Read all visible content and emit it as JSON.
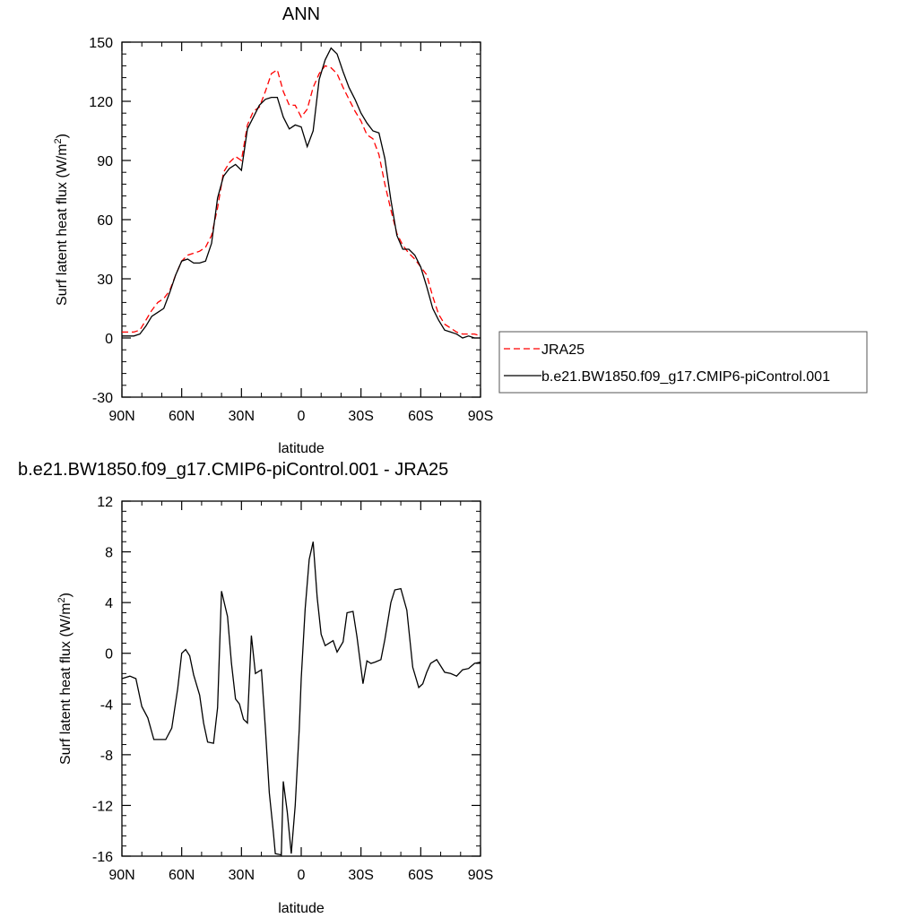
{
  "chart_data": [
    {
      "type": "line",
      "title": "ANN",
      "xlabel": "latitude",
      "ylabel_main": "Surf latent heat flux (W/m",
      "ylabel_sup": "2",
      "ylabel_end": ")",
      "xlim": [
        90,
        -90
      ],
      "ylim": [
        -30,
        150
      ],
      "x_ticks": [
        90,
        60,
        30,
        0,
        -30,
        -60,
        -90
      ],
      "x_tick_labels": [
        "90N",
        "60N",
        "30N",
        "0",
        "30S",
        "60S",
        "90S"
      ],
      "y_ticks": [
        -30,
        0,
        30,
        60,
        90,
        120,
        150
      ],
      "y_tick_labels": [
        "-30",
        "0",
        "30",
        "60",
        "90",
        "120",
        "150"
      ],
      "legend": {
        "placement": "right",
        "entries": [
          "JRA25",
          "b.e21.BW1850.f09_g17.CMIP6-piControl.001"
        ]
      },
      "series": [
        {
          "name": "JRA25",
          "color": "#ff0000",
          "dash": "dashed",
          "x": [
            90,
            87,
            84,
            81,
            78,
            75,
            72,
            69,
            66,
            63,
            60,
            57,
            54,
            51,
            48,
            45,
            42,
            39,
            36,
            33,
            30,
            27,
            24,
            21,
            18,
            15,
            12,
            9,
            6,
            3,
            0,
            -3,
            -6,
            -9,
            -12,
            -15,
            -18,
            -21,
            -24,
            -27,
            -30,
            -33,
            -36,
            -39,
            -42,
            -45,
            -48,
            -51,
            -54,
            -57,
            -60,
            -63,
            -66,
            -69,
            -72,
            -75,
            -78,
            -81,
            -84,
            -87,
            -90
          ],
          "y": [
            3,
            3,
            3,
            4,
            9,
            14,
            18,
            20,
            24,
            32,
            39,
            42,
            43,
            44,
            46,
            52,
            66,
            84,
            89,
            92,
            90,
            108,
            115,
            117,
            125,
            134,
            136,
            125,
            118,
            118,
            112,
            116,
            127,
            134,
            138,
            137,
            134,
            127,
            121,
            115,
            110,
            103,
            101,
            93,
            78,
            65,
            53,
            47,
            43,
            40,
            36,
            32,
            21,
            12,
            7,
            5,
            3,
            2,
            2,
            2,
            1
          ]
        },
        {
          "name": "b.e21.BW1850.f09_g17.CMIP6-piControl.001",
          "color": "#000000",
          "dash": "solid",
          "x": [
            90,
            87,
            84,
            81,
            78,
            75,
            72,
            69,
            66,
            63,
            60,
            57,
            54,
            51,
            48,
            45,
            42,
            39,
            36,
            33,
            30,
            27,
            24,
            21,
            18,
            15,
            12,
            9,
            6,
            3,
            0,
            -3,
            -6,
            -9,
            -12,
            -15,
            -18,
            -21,
            -24,
            -27,
            -30,
            -33,
            -36,
            -39,
            -42,
            -45,
            -48,
            -51,
            -54,
            -57,
            -60,
            -63,
            -66,
            -69,
            -72,
            -75,
            -78,
            -81,
            -84,
            -87,
            -90
          ],
          "y": [
            1,
            1,
            1,
            2,
            6,
            11,
            13,
            15,
            23,
            32,
            39,
            40,
            38,
            38,
            39,
            48,
            71,
            82,
            86,
            88,
            85,
            106,
            112,
            118,
            121,
            122,
            122,
            112,
            106,
            108,
            107,
            97,
            105,
            131,
            141,
            147,
            144,
            135,
            127,
            121,
            114,
            109,
            105,
            104,
            91,
            70,
            52,
            45,
            45,
            42,
            36,
            26,
            15,
            9,
            4,
            3,
            2,
            0,
            1,
            0,
            0
          ]
        }
      ]
    },
    {
      "type": "line",
      "title": "b.e21.BW1850.f09_g17.CMIP6-piControl.001 - JRA25",
      "xlabel": "latitude",
      "ylabel_main": "Surf latent heat flux (W/m",
      "ylabel_sup": "2",
      "ylabel_end": ")",
      "xlim": [
        90,
        -90
      ],
      "ylim": [
        -16,
        12
      ],
      "x_ticks": [
        90,
        60,
        30,
        0,
        -30,
        -60,
        -90
      ],
      "x_tick_labels": [
        "90N",
        "60N",
        "30N",
        "0",
        "30S",
        "60S",
        "90S"
      ],
      "y_ticks": [
        -16,
        -12,
        -8,
        -4,
        0,
        4,
        8,
        12
      ],
      "y_tick_labels": [
        "-16",
        "-12",
        "-8",
        "-4",
        "0",
        "4",
        "8",
        "12"
      ],
      "series": [
        {
          "color": "#000000",
          "x": [
            90,
            86,
            83,
            80,
            77,
            74,
            71,
            68,
            65,
            62,
            60,
            58,
            56,
            54,
            51,
            49,
            47,
            44,
            42,
            40,
            37,
            35,
            33,
            31,
            29,
            27,
            25,
            23,
            20,
            18,
            16,
            14,
            13,
            10,
            9,
            7,
            5,
            3,
            1,
            0,
            -2,
            -4,
            -6,
            -8,
            -10,
            -12,
            -14,
            -16,
            -18,
            -21,
            -23,
            -26,
            -28,
            -31,
            -33,
            -35,
            -37,
            -40,
            -42,
            -45,
            -47,
            -50,
            -53,
            -56,
            -59,
            -61,
            -63,
            -65,
            -68,
            -72,
            -75,
            -78,
            -81,
            -84,
            -87,
            -90
          ],
          "y": [
            -2,
            -1.8,
            -2,
            -4.2,
            -5.1,
            -6.8,
            -6.8,
            -6.8,
            -5.9,
            -2.8,
            0,
            0.3,
            -0.2,
            -1.7,
            -3.3,
            -5.5,
            -7.0,
            -7.1,
            -4.3,
            4.9,
            2.9,
            -0.8,
            -3.6,
            -4.0,
            -5.2,
            -5.5,
            1.4,
            -1.6,
            -1.3,
            -5.9,
            -11.0,
            -14.1,
            -15.8,
            -15.9,
            -10.1,
            -12.5,
            -15.8,
            -12.0,
            -6.0,
            -2.0,
            3.5,
            7.4,
            8.8,
            4.4,
            1.5,
            0.6,
            0.8,
            1.0,
            0.1,
            0.9,
            3.2,
            3.3,
            1.3,
            -2.4,
            -0.6,
            -0.8,
            -0.7,
            -0.5,
            1.1,
            4.0,
            5.0,
            5.1,
            3.4,
            -1.1,
            -2.7,
            -2.4,
            -1.5,
            -0.8,
            -0.5,
            -1.5,
            -1.6,
            -1.8,
            -1.3,
            -1.2,
            -0.8,
            -0.7
          ]
        }
      ]
    }
  ]
}
